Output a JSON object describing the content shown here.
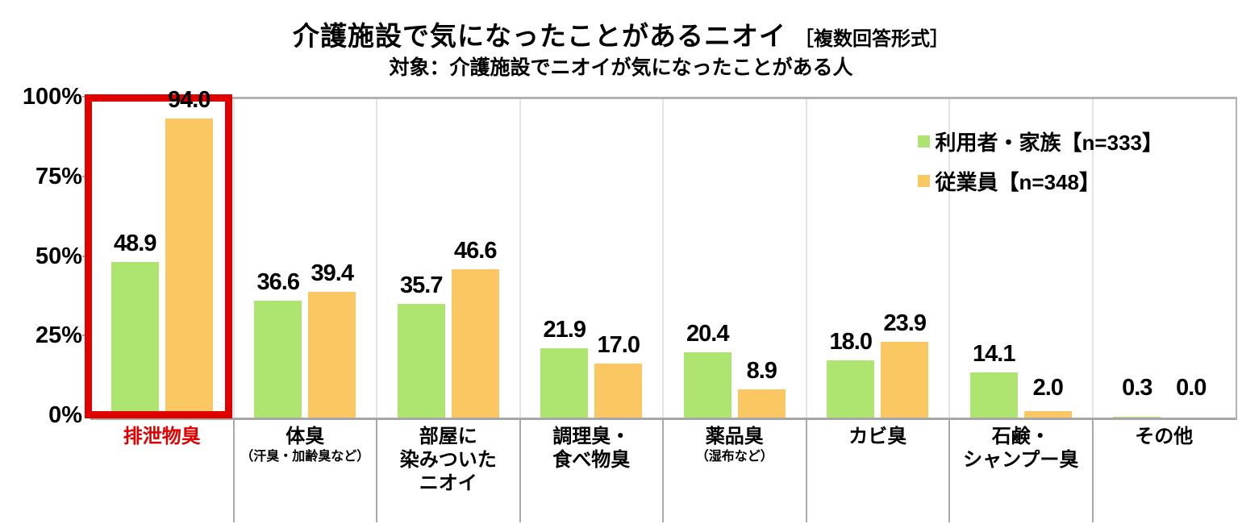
{
  "title": {
    "main": "介護施設で気になったことがあるニオイ",
    "note": "［複数回答形式］"
  },
  "subtitle": "対象：介護施設でニオイが気になったことがある人",
  "legend": {
    "items": [
      {
        "label": "利用者・家族【n=333】",
        "color": "#aee571"
      },
      {
        "label": "従業員【n=348】",
        "color": "#fbc763"
      }
    ]
  },
  "colors": {
    "highlight_red": "#e00000",
    "series_green": "#aee571",
    "series_orange": "#fbc763",
    "frame_gray": "#b3b3b3",
    "axis_gray": "#a6a6a6",
    "inner_separator_gray": "#e4e4e4"
  },
  "chart_data": {
    "type": "bar",
    "title": "介護施設で気になったことがあるニオイ［複数回答形式］",
    "subtitle": "対象：介護施設でニオイが気になったことがある人",
    "xlabel": "",
    "ylabel": "%",
    "ylim": [
      0,
      100
    ],
    "yticks": [
      "100%",
      "75%",
      "50%",
      "25%",
      "0%"
    ],
    "grid": false,
    "legend_position": "top-right",
    "highlighted_category_index": 0,
    "categories": [
      {
        "lines": [
          "排泄物臭"
        ],
        "note": "",
        "highlighted": true
      },
      {
        "lines": [
          "体臭"
        ],
        "note": "（汗臭・加齢臭など）",
        "highlighted": false
      },
      {
        "lines": [
          "部屋に",
          "染みついた",
          "ニオイ"
        ],
        "note": "",
        "highlighted": false
      },
      {
        "lines": [
          "調理臭・",
          "食べ物臭"
        ],
        "note": "",
        "highlighted": false
      },
      {
        "lines": [
          "薬品臭"
        ],
        "note": "（湿布など）",
        "highlighted": false
      },
      {
        "lines": [
          "カビ臭"
        ],
        "note": "",
        "highlighted": false
      },
      {
        "lines": [
          "石鹸・",
          "シャンプー臭"
        ],
        "note": "",
        "highlighted": false
      },
      {
        "lines": [
          "その他"
        ],
        "note": "",
        "highlighted": false
      }
    ],
    "series": [
      {
        "name": "利用者・家族【n=333】",
        "color": "#aee571",
        "values": [
          48.9,
          36.6,
          35.7,
          21.9,
          20.4,
          18.0,
          14.1,
          0.3
        ]
      },
      {
        "name": "従業員【n=348】",
        "color": "#fbc763",
        "values": [
          94.0,
          39.4,
          46.6,
          17.0,
          8.9,
          23.9,
          2.0,
          0.0
        ]
      }
    ]
  }
}
